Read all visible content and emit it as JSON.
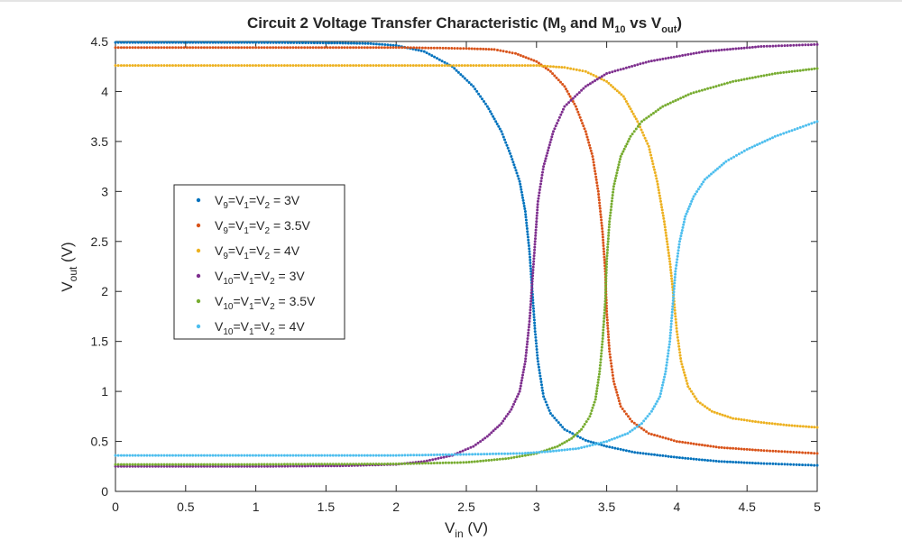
{
  "chart_data": {
    "type": "scatter",
    "title": {
      "main": "Circuit 2 Voltage Transfer Characteristic (M",
      "sub1": "9",
      "mid": " and M",
      "sub2": "10",
      "vs": " vs V",
      "sub3": "out",
      "close": ")"
    },
    "xlabel": {
      "main": "V",
      "sub": "in",
      "unit": " (V)"
    },
    "ylabel": {
      "main": "V",
      "sub": "out",
      "unit": " (V)"
    },
    "xlim": [
      0,
      5
    ],
    "ylim": [
      0,
      4.5
    ],
    "xticks": [
      0,
      0.5,
      1,
      1.5,
      2,
      2.5,
      3,
      3.5,
      4,
      4.5,
      5
    ],
    "yticks": [
      0,
      0.5,
      1,
      1.5,
      2,
      2.5,
      3,
      3.5,
      4,
      4.5
    ],
    "grid": false,
    "legend_position": "center-left",
    "series": [
      {
        "name": "V9=V1=V2 = 3V",
        "label_parts": [
          "V",
          "9",
          "=V",
          "1",
          "=V",
          "2",
          " = 3V"
        ],
        "color": "#0072BD",
        "points": [
          [
            0,
            4.49
          ],
          [
            1.0,
            4.49
          ],
          [
            1.5,
            4.485
          ],
          [
            1.8,
            4.48
          ],
          [
            2.0,
            4.46
          ],
          [
            2.2,
            4.4
          ],
          [
            2.4,
            4.25
          ],
          [
            2.55,
            4.05
          ],
          [
            2.65,
            3.85
          ],
          [
            2.75,
            3.6
          ],
          [
            2.82,
            3.35
          ],
          [
            2.88,
            3.1
          ],
          [
            2.92,
            2.8
          ],
          [
            2.95,
            2.4
          ],
          [
            2.97,
            2.0
          ],
          [
            2.99,
            1.6
          ],
          [
            3.01,
            1.3
          ],
          [
            3.05,
            0.95
          ],
          [
            3.1,
            0.78
          ],
          [
            3.2,
            0.62
          ],
          [
            3.35,
            0.51
          ],
          [
            3.5,
            0.45
          ],
          [
            3.7,
            0.39
          ],
          [
            4.0,
            0.34
          ],
          [
            4.3,
            0.3
          ],
          [
            4.6,
            0.28
          ],
          [
            5.0,
            0.26
          ]
        ]
      },
      {
        "name": "V9=V1=V2 = 3.5V",
        "label_parts": [
          "V",
          "9",
          "=V",
          "1",
          "=V",
          "2",
          " = 3.5V"
        ],
        "color": "#D95319",
        "points": [
          [
            0,
            4.44
          ],
          [
            1.0,
            4.44
          ],
          [
            2.0,
            4.44
          ],
          [
            2.5,
            4.43
          ],
          [
            2.7,
            4.42
          ],
          [
            2.85,
            4.38
          ],
          [
            3.0,
            4.3
          ],
          [
            3.1,
            4.2
          ],
          [
            3.2,
            4.05
          ],
          [
            3.28,
            3.85
          ],
          [
            3.35,
            3.6
          ],
          [
            3.4,
            3.35
          ],
          [
            3.44,
            3.0
          ],
          [
            3.47,
            2.6
          ],
          [
            3.49,
            2.2
          ],
          [
            3.5,
            1.8
          ],
          [
            3.52,
            1.4
          ],
          [
            3.55,
            1.1
          ],
          [
            3.6,
            0.85
          ],
          [
            3.68,
            0.7
          ],
          [
            3.8,
            0.58
          ],
          [
            4.0,
            0.5
          ],
          [
            4.3,
            0.44
          ],
          [
            4.6,
            0.41
          ],
          [
            5.0,
            0.38
          ]
        ]
      },
      {
        "name": "V9=V1=V2 = 4V",
        "label_parts": [
          "V",
          "9",
          "=V",
          "1",
          "=V",
          "2",
          " = 4V"
        ],
        "color": "#EDB120",
        "points": [
          [
            0,
            4.26
          ],
          [
            1.0,
            4.26
          ],
          [
            2.0,
            4.26
          ],
          [
            3.0,
            4.26
          ],
          [
            3.2,
            4.24
          ],
          [
            3.35,
            4.2
          ],
          [
            3.5,
            4.1
          ],
          [
            3.62,
            3.95
          ],
          [
            3.72,
            3.7
          ],
          [
            3.8,
            3.45
          ],
          [
            3.86,
            3.1
          ],
          [
            3.91,
            2.7
          ],
          [
            3.95,
            2.3
          ],
          [
            3.98,
            1.9
          ],
          [
            4.0,
            1.6
          ],
          [
            4.03,
            1.3
          ],
          [
            4.08,
            1.05
          ],
          [
            4.15,
            0.9
          ],
          [
            4.25,
            0.8
          ],
          [
            4.4,
            0.73
          ],
          [
            4.6,
            0.69
          ],
          [
            4.8,
            0.66
          ],
          [
            5.0,
            0.64
          ]
        ]
      },
      {
        "name": "V10=V1=V2 = 3V",
        "label_parts": [
          "V",
          "10",
          "=V",
          "1",
          "=V",
          "2",
          " = 3V"
        ],
        "color": "#7E2F8E",
        "points": [
          [
            0,
            0.25
          ],
          [
            1.0,
            0.25
          ],
          [
            1.6,
            0.255
          ],
          [
            2.0,
            0.27
          ],
          [
            2.2,
            0.3
          ],
          [
            2.4,
            0.36
          ],
          [
            2.55,
            0.45
          ],
          [
            2.65,
            0.55
          ],
          [
            2.75,
            0.68
          ],
          [
            2.82,
            0.82
          ],
          [
            2.88,
            1.0
          ],
          [
            2.92,
            1.3
          ],
          [
            2.95,
            1.7
          ],
          [
            2.97,
            2.1
          ],
          [
            2.99,
            2.5
          ],
          [
            3.01,
            2.9
          ],
          [
            3.05,
            3.25
          ],
          [
            3.12,
            3.6
          ],
          [
            3.2,
            3.85
          ],
          [
            3.35,
            4.05
          ],
          [
            3.5,
            4.18
          ],
          [
            3.8,
            4.3
          ],
          [
            4.2,
            4.4
          ],
          [
            4.6,
            4.45
          ],
          [
            5.0,
            4.47
          ]
        ]
      },
      {
        "name": "V10=V1=V2 = 3.5V",
        "label_parts": [
          "V",
          "10",
          "=V",
          "1",
          "=V",
          "2",
          " = 3.5V"
        ],
        "color": "#77AC30",
        "points": [
          [
            0,
            0.27
          ],
          [
            1.0,
            0.27
          ],
          [
            2.0,
            0.275
          ],
          [
            2.5,
            0.29
          ],
          [
            2.8,
            0.33
          ],
          [
            3.0,
            0.38
          ],
          [
            3.15,
            0.45
          ],
          [
            3.25,
            0.53
          ],
          [
            3.32,
            0.62
          ],
          [
            3.38,
            0.75
          ],
          [
            3.42,
            0.92
          ],
          [
            3.45,
            1.2
          ],
          [
            3.47,
            1.5
          ],
          [
            3.49,
            1.9
          ],
          [
            3.5,
            2.3
          ],
          [
            3.52,
            2.7
          ],
          [
            3.55,
            3.05
          ],
          [
            3.6,
            3.35
          ],
          [
            3.67,
            3.55
          ],
          [
            3.75,
            3.7
          ],
          [
            3.9,
            3.85
          ],
          [
            4.1,
            3.98
          ],
          [
            4.4,
            4.1
          ],
          [
            4.7,
            4.18
          ],
          [
            5.0,
            4.23
          ]
        ]
      },
      {
        "name": "V10=V1=V2 = 4V",
        "label_parts": [
          "V",
          "10",
          "=V",
          "1",
          "=V",
          "2",
          " = 4V"
        ],
        "color": "#4DBEEE",
        "points": [
          [
            0,
            0.36
          ],
          [
            1.0,
            0.36
          ],
          [
            2.0,
            0.36
          ],
          [
            2.5,
            0.37
          ],
          [
            2.9,
            0.38
          ],
          [
            3.1,
            0.4
          ],
          [
            3.3,
            0.43
          ],
          [
            3.5,
            0.5
          ],
          [
            3.65,
            0.58
          ],
          [
            3.75,
            0.68
          ],
          [
            3.82,
            0.8
          ],
          [
            3.88,
            0.95
          ],
          [
            3.92,
            1.2
          ],
          [
            3.95,
            1.5
          ],
          [
            3.97,
            1.85
          ],
          [
            3.99,
            2.2
          ],
          [
            4.02,
            2.5
          ],
          [
            4.06,
            2.75
          ],
          [
            4.12,
            2.95
          ],
          [
            4.2,
            3.12
          ],
          [
            4.35,
            3.3
          ],
          [
            4.5,
            3.42
          ],
          [
            4.7,
            3.55
          ],
          [
            5.0,
            3.7
          ]
        ]
      }
    ]
  }
}
